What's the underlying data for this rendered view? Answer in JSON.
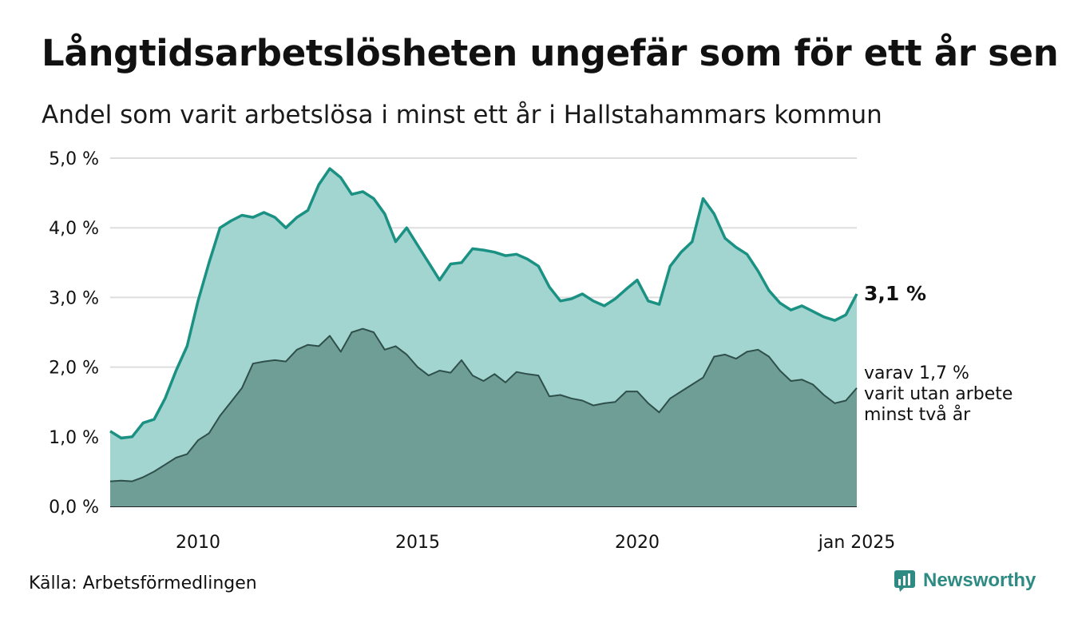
{
  "title": "Långtidsarbetslösheten ungefär som för ett år sen",
  "subtitle": "Andel som varit arbetslösa i minst ett år i Hallstahammars kommun",
  "source": "Källa: Arbetsförmedlingen",
  "brand": "Newsworthy",
  "colors": {
    "total_line": "#1a9183",
    "total_fill": "#a3d5d0",
    "long_line": "#2f4f4a",
    "long_fill": "#6f9e97",
    "grid": "#dddddd",
    "brand": "#2e8b83"
  },
  "chart_data": {
    "type": "area",
    "y_ticks": [
      "0,0 %",
      "1,0 %",
      "2,0 %",
      "3,0 %",
      "4,0 %",
      "5,0 %"
    ],
    "y_tick_values": [
      0,
      1,
      2,
      3,
      4,
      5
    ],
    "ylim": [
      0,
      5
    ],
    "x_ticks": [
      "2010",
      "2015",
      "2020",
      "jan 2025"
    ],
    "x_tick_values": [
      2010,
      2015,
      2020,
      2025
    ],
    "xlim": [
      2008,
      2025
    ],
    "grid": true,
    "end_labels": {
      "total": "3,1 %",
      "long": [
        "varav 1,7 %",
        "varit utan arbete",
        "minst två år"
      ]
    },
    "series": [
      {
        "key": "total",
        "x": [
          2008.0,
          2008.25,
          2008.5,
          2008.75,
          2009.0,
          2009.25,
          2009.5,
          2009.75,
          2010.0,
          2010.25,
          2010.5,
          2010.75,
          2011.0,
          2011.25,
          2011.5,
          2011.75,
          2012.0,
          2012.25,
          2012.5,
          2012.75,
          2013.0,
          2013.25,
          2013.5,
          2013.75,
          2014.0,
          2014.25,
          2014.5,
          2014.75,
          2015.0,
          2015.25,
          2015.5,
          2015.75,
          2016.0,
          2016.25,
          2016.5,
          2016.75,
          2017.0,
          2017.25,
          2017.5,
          2017.75,
          2018.0,
          2018.25,
          2018.5,
          2018.75,
          2019.0,
          2019.25,
          2019.5,
          2019.75,
          2020.0,
          2020.25,
          2020.5,
          2020.75,
          2021.0,
          2021.25,
          2021.5,
          2021.75,
          2022.0,
          2022.25,
          2022.5,
          2022.75,
          2023.0,
          2023.25,
          2023.5,
          2023.75,
          2024.0,
          2024.25,
          2024.5,
          2024.75,
          2025.0
        ],
        "values": [
          1.08,
          0.98,
          1.0,
          1.2,
          1.25,
          1.55,
          1.95,
          2.3,
          2.95,
          3.5,
          4.0,
          4.1,
          4.18,
          4.15,
          4.22,
          4.15,
          4.0,
          4.15,
          4.25,
          4.62,
          4.85,
          4.72,
          4.48,
          4.52,
          4.42,
          4.2,
          3.8,
          4.0,
          3.75,
          3.5,
          3.25,
          3.48,
          3.5,
          3.7,
          3.68,
          3.65,
          3.6,
          3.62,
          3.55,
          3.45,
          3.15,
          2.95,
          2.98,
          3.05,
          2.95,
          2.88,
          2.98,
          3.12,
          3.25,
          2.95,
          2.9,
          3.45,
          3.65,
          3.8,
          4.42,
          4.2,
          3.85,
          3.72,
          3.62,
          3.38,
          3.1,
          2.92,
          2.82,
          2.88,
          2.8,
          2.72,
          2.67,
          2.75,
          3.05
        ]
      },
      {
        "key": "long",
        "x": [
          2008.0,
          2008.25,
          2008.5,
          2008.75,
          2009.0,
          2009.25,
          2009.5,
          2009.75,
          2010.0,
          2010.25,
          2010.5,
          2010.75,
          2011.0,
          2011.25,
          2011.5,
          2011.75,
          2012.0,
          2012.25,
          2012.5,
          2012.75,
          2013.0,
          2013.25,
          2013.5,
          2013.75,
          2014.0,
          2014.25,
          2014.5,
          2014.75,
          2015.0,
          2015.25,
          2015.5,
          2015.75,
          2016.0,
          2016.25,
          2016.5,
          2016.75,
          2017.0,
          2017.25,
          2017.5,
          2017.75,
          2018.0,
          2018.25,
          2018.5,
          2018.75,
          2019.0,
          2019.25,
          2019.5,
          2019.75,
          2020.0,
          2020.25,
          2020.5,
          2020.75,
          2021.0,
          2021.25,
          2021.5,
          2021.75,
          2022.0,
          2022.25,
          2022.5,
          2022.75,
          2023.0,
          2023.25,
          2023.5,
          2023.75,
          2024.0,
          2024.25,
          2024.5,
          2024.75,
          2025.0
        ],
        "values": [
          0.36,
          0.37,
          0.36,
          0.42,
          0.5,
          0.6,
          0.7,
          0.75,
          0.95,
          1.05,
          1.3,
          1.5,
          1.7,
          2.05,
          2.08,
          2.1,
          2.08,
          2.25,
          2.32,
          2.3,
          2.45,
          2.22,
          2.5,
          2.55,
          2.5,
          2.25,
          2.3,
          2.18,
          2.0,
          1.88,
          1.95,
          1.92,
          2.1,
          1.88,
          1.8,
          1.9,
          1.78,
          1.93,
          1.9,
          1.88,
          1.58,
          1.6,
          1.55,
          1.52,
          1.45,
          1.48,
          1.5,
          1.65,
          1.65,
          1.48,
          1.35,
          1.55,
          1.65,
          1.75,
          1.85,
          2.15,
          2.18,
          2.12,
          2.22,
          2.25,
          2.15,
          1.95,
          1.8,
          1.82,
          1.75,
          1.6,
          1.48,
          1.52,
          1.7
        ]
      }
    ]
  }
}
